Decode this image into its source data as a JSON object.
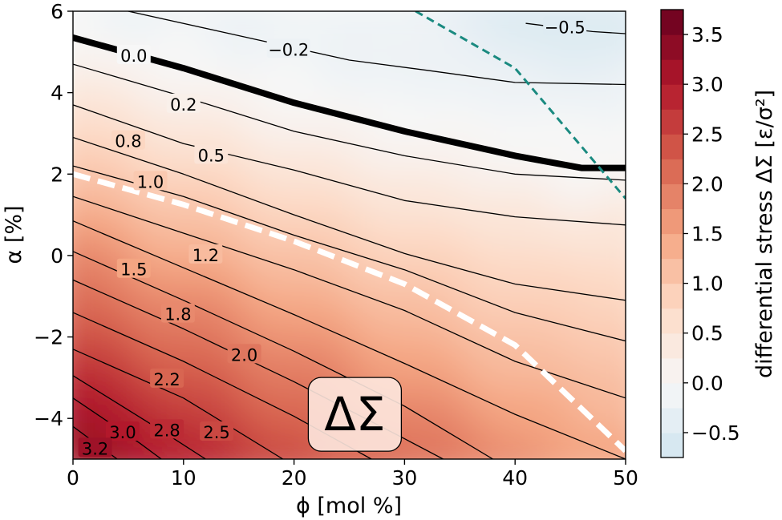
{
  "chart_data": {
    "type": "contour",
    "xlabel": "ϕ  [mol %]",
    "ylabel": "α  [%]",
    "xlim": [
      0,
      50
    ],
    "ylim": [
      -5,
      6
    ],
    "x_ticks": [
      0,
      10,
      20,
      30,
      40,
      50
    ],
    "y_ticks": [
      -4,
      -2,
      0,
      2,
      4,
      6
    ],
    "y_tick_labels": [
      "−4",
      "−2",
      "0",
      "2",
      "4",
      "6"
    ],
    "colorbar": {
      "label": "differential stress ΔΣ  [ε/σ²]",
      "range": [
        -0.75,
        3.75
      ],
      "ticks": [
        -0.5,
        0.0,
        0.5,
        1.0,
        1.5,
        2.0,
        2.5,
        3.0,
        3.5
      ],
      "tick_labels": [
        "−0.5",
        "0.0",
        "0.5",
        "1.0",
        "1.5",
        "2.0",
        "2.5",
        "3.0",
        "3.5"
      ],
      "levels": 18,
      "colormap": "RdBu_r"
    },
    "contour_lines": [
      {
        "label": "-0.5",
        "points": [
          [
            41.0,
            5.7
          ],
          [
            44.0,
            5.6
          ],
          [
            47.0,
            5.5
          ],
          [
            50.0,
            5.45
          ]
        ],
        "label_at": [
          44.5,
          5.6
        ]
      },
      {
        "label": "-0.2",
        "points": [
          [
            5.0,
            6.0
          ],
          [
            15.0,
            5.4
          ],
          [
            25.0,
            4.8
          ],
          [
            32.0,
            4.55
          ],
          [
            40.0,
            4.25
          ],
          [
            50.0,
            4.2
          ]
        ],
        "label_at": [
          19.5,
          5.05
        ]
      },
      {
        "label": "0.0",
        "points": [
          [
            0.0,
            5.35
          ],
          [
            10.0,
            4.6
          ],
          [
            20.0,
            3.75
          ],
          [
            30.0,
            3.05
          ],
          [
            40.0,
            2.45
          ],
          [
            46.0,
            2.15
          ],
          [
            50.0,
            2.15
          ]
        ],
        "bold": true,
        "label_at": [
          5.5,
          4.9
        ]
      },
      {
        "label": "0.2",
        "points": [
          [
            0.0,
            4.7
          ],
          [
            10.0,
            3.9
          ],
          [
            20.0,
            3.05
          ],
          [
            30.0,
            2.45
          ],
          [
            40.0,
            2.0
          ],
          [
            50.0,
            1.85
          ]
        ],
        "label_at": [
          10.0,
          3.7
        ]
      },
      {
        "label": "0.5",
        "points": [
          [
            0.0,
            3.7
          ],
          [
            10.0,
            2.75
          ],
          [
            20.0,
            2.1
          ],
          [
            30.0,
            1.35
          ],
          [
            40.0,
            0.95
          ],
          [
            50.0,
            0.75
          ]
        ],
        "label_at": [
          12.5,
          2.45
        ]
      },
      {
        "label": "0.8",
        "points": [
          [
            0.0,
            2.9
          ],
          [
            10.0,
            2.0
          ],
          [
            20.0,
            1.0
          ],
          [
            30.0,
            0.05
          ],
          [
            40.0,
            -0.7
          ],
          [
            50.0,
            -1.1
          ]
        ],
        "label_at": [
          5.0,
          2.8
        ]
      },
      {
        "label": "1.0",
        "points": [
          [
            0.0,
            2.2
          ],
          [
            10.0,
            1.45
          ],
          [
            20.0,
            0.5
          ],
          [
            30.0,
            -0.35
          ],
          [
            40.0,
            -1.4
          ],
          [
            50.0,
            -2.1
          ]
        ],
        "label_at": [
          7.0,
          1.8
        ]
      },
      {
        "label": "1.2",
        "points": [
          [
            0.0,
            1.45
          ],
          [
            10.0,
            0.55
          ],
          [
            20.0,
            -0.35
          ],
          [
            30.0,
            -1.35
          ],
          [
            40.0,
            -2.6
          ],
          [
            50.0,
            -3.5
          ]
        ],
        "label_at": [
          12.0,
          0.0
        ]
      },
      {
        "label": "1.5",
        "points": [
          [
            0.0,
            0.85
          ],
          [
            10.0,
            -0.3
          ],
          [
            20.0,
            -1.45
          ],
          [
            30.0,
            -2.65
          ],
          [
            40.0,
            -3.9
          ],
          [
            50.0,
            -5.0
          ]
        ],
        "label_at": [
          5.5,
          -0.35
        ]
      },
      {
        "label": "1.8",
        "points": [
          [
            0.0,
            0.1
          ],
          [
            10.0,
            -1.1
          ],
          [
            20.0,
            -2.35
          ],
          [
            30.0,
            -3.7
          ],
          [
            38.0,
            -5.0
          ]
        ],
        "label_at": [
          9.5,
          -1.45
        ]
      },
      {
        "label": "2.0",
        "points": [
          [
            0.0,
            -0.6
          ],
          [
            10.0,
            -1.8
          ],
          [
            20.0,
            -3.1
          ],
          [
            30.0,
            -4.5
          ],
          [
            33.5,
            -5.0
          ]
        ],
        "label_at": [
          15.5,
          -2.45
        ]
      },
      {
        "label": "2.2",
        "points": [
          [
            0.0,
            -1.4
          ],
          [
            10.0,
            -2.6
          ],
          [
            20.0,
            -3.95
          ],
          [
            27.0,
            -5.0
          ]
        ],
        "label_at": [
          8.5,
          -3.05
        ]
      },
      {
        "label": "2.5",
        "points": [
          [
            0.0,
            -2.3
          ],
          [
            10.0,
            -3.5
          ],
          [
            19.0,
            -5.0
          ]
        ],
        "label_at": [
          13.0,
          -4.35
        ]
      },
      {
        "label": "2.8",
        "points": [
          [
            0.0,
            -2.95
          ],
          [
            8.0,
            -4.3
          ],
          [
            12.0,
            -5.0
          ]
        ],
        "label_at": [
          8.5,
          -4.3
        ]
      },
      {
        "label": "3.0",
        "points": [
          [
            0.0,
            -3.5
          ],
          [
            6.0,
            -4.6
          ],
          [
            8.0,
            -5.0
          ]
        ],
        "label_at": [
          4.5,
          -4.35
        ]
      },
      {
        "label": "3.2",
        "points": [
          [
            0.0,
            -4.2
          ],
          [
            3.0,
            -4.8
          ],
          [
            4.0,
            -5.0
          ]
        ],
        "label_at": [
          2.0,
          -4.75
        ]
      }
    ],
    "dashed_lines": [
      {
        "color": "#ffffff",
        "points": [
          [
            0.0,
            2.0
          ],
          [
            10.0,
            1.25
          ],
          [
            20.0,
            0.35
          ],
          [
            30.0,
            -0.7
          ],
          [
            40.0,
            -2.2
          ],
          [
            50.0,
            -4.8
          ]
        ]
      },
      {
        "color": "#1a8a80",
        "points": [
          [
            31.0,
            6.0
          ],
          [
            40.0,
            4.6
          ],
          [
            50.0,
            1.4
          ]
        ]
      }
    ],
    "annotation": {
      "text": "ΔΣ",
      "at": [
        25.5,
        -3.9
      ]
    }
  }
}
